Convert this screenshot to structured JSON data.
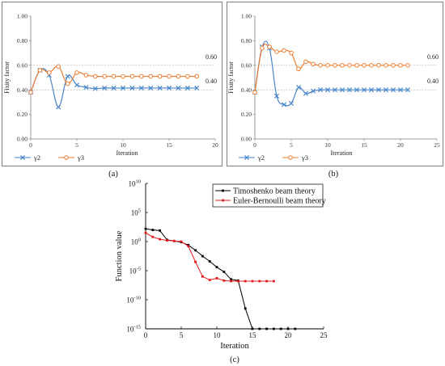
{
  "chart_data": [
    {
      "id": "a",
      "type": "line",
      "caption": "(a)",
      "xlabel": "Iteration",
      "ylabel": "Fixity factor",
      "xlim": [
        0,
        20
      ],
      "ylim": [
        0,
        1
      ],
      "xticks": [
        0,
        5,
        10,
        15,
        20
      ],
      "yticks": [
        0.0,
        0.2,
        0.4,
        0.6,
        0.8,
        1.0
      ],
      "ytick_labels": [
        "0.00",
        "0.20",
        "0.40",
        "0.60",
        "0.80",
        "1.00"
      ],
      "reference_lines": [
        {
          "y": 0.6,
          "label": "0.60"
        },
        {
          "y": 0.4,
          "label": "0.40"
        }
      ],
      "grid": false,
      "legend_position": "bottom-left",
      "series": [
        {
          "name": "γ2",
          "marker": "x",
          "color": "#4a86c8",
          "x": [
            0,
            1,
            2,
            3,
            4,
            5,
            6,
            7,
            8,
            9,
            10,
            11,
            12,
            13,
            14,
            15,
            16,
            17,
            18
          ],
          "y": [
            0.38,
            0.56,
            0.52,
            0.26,
            0.51,
            0.44,
            0.42,
            0.41,
            0.415,
            0.415,
            0.415,
            0.415,
            0.415,
            0.415,
            0.415,
            0.415,
            0.415,
            0.415,
            0.415
          ]
        },
        {
          "name": "γ3",
          "marker": "o",
          "color": "#ed7d31",
          "x": [
            0,
            1,
            2,
            3,
            4,
            5,
            6,
            7,
            8,
            9,
            10,
            11,
            12,
            13,
            14,
            15,
            16,
            17,
            18
          ],
          "y": [
            0.38,
            0.56,
            0.54,
            0.59,
            0.45,
            0.54,
            0.52,
            0.51,
            0.51,
            0.51,
            0.51,
            0.51,
            0.51,
            0.51,
            0.51,
            0.51,
            0.51,
            0.51,
            0.51
          ]
        }
      ]
    },
    {
      "id": "b",
      "type": "line",
      "caption": "(b)",
      "xlabel": "Iteration",
      "ylabel": "Fixity factor",
      "xlim": [
        0,
        25
      ],
      "ylim": [
        0,
        1
      ],
      "xticks": [
        0,
        5,
        10,
        15,
        20,
        25
      ],
      "yticks": [
        0.0,
        0.2,
        0.4,
        0.6,
        0.8,
        1.0
      ],
      "ytick_labels": [
        "0.00",
        "0.20",
        "0.40",
        "0.60",
        "0.80",
        "1.00"
      ],
      "reference_lines": [
        {
          "y": 0.6,
          "label": "0.60"
        },
        {
          "y": 0.4,
          "label": "0.40"
        }
      ],
      "grid": false,
      "legend_position": "bottom-left",
      "series": [
        {
          "name": "γ2",
          "marker": "x",
          "color": "#4a86c8",
          "x": [
            0,
            1,
            2,
            3,
            4,
            5,
            6,
            7,
            8,
            9,
            10,
            11,
            12,
            13,
            14,
            15,
            16,
            17,
            18,
            19,
            20,
            21
          ],
          "y": [
            0.38,
            0.75,
            0.74,
            0.35,
            0.28,
            0.29,
            0.42,
            0.37,
            0.39,
            0.4,
            0.4,
            0.4,
            0.4,
            0.4,
            0.4,
            0.4,
            0.4,
            0.4,
            0.4,
            0.4,
            0.4,
            0.4
          ]
        },
        {
          "name": "γ3",
          "marker": "o",
          "color": "#ed7d31",
          "x": [
            0,
            1,
            2,
            3,
            4,
            5,
            6,
            7,
            8,
            9,
            10,
            11,
            12,
            13,
            14,
            15,
            16,
            17,
            18,
            19,
            20,
            21
          ],
          "y": [
            0.38,
            0.74,
            0.75,
            0.71,
            0.72,
            0.7,
            0.57,
            0.63,
            0.61,
            0.6,
            0.6,
            0.6,
            0.6,
            0.6,
            0.6,
            0.6,
            0.6,
            0.6,
            0.6,
            0.6,
            0.6,
            0.6
          ]
        }
      ]
    },
    {
      "id": "c",
      "type": "line",
      "caption": "(c)",
      "xlabel": "Iteration",
      "ylabel": "Function value",
      "xlim": [
        0,
        25
      ],
      "ylim_log10": [
        -15,
        10
      ],
      "y_scale": "log",
      "xticks": [
        0,
        5,
        10,
        15,
        20,
        25
      ],
      "ytick_exponents": [
        -15,
        -10,
        -5,
        0,
        5,
        10
      ],
      "ytick_base": "10",
      "grid": false,
      "legend_position": "top-right",
      "series": [
        {
          "name": "Timoshenko beam theory",
          "color": "#000000",
          "x": [
            0,
            1,
            2,
            3,
            4,
            5,
            6,
            7,
            8,
            9,
            10,
            11,
            12,
            13,
            14,
            15,
            16,
            17,
            18,
            19,
            20,
            21
          ],
          "log10_y": [
            2.2,
            2.0,
            1.9,
            0.3,
            0.1,
            -0.1,
            -0.6,
            -1.5,
            -2.5,
            -3.4,
            -4.4,
            -5.2,
            -6.5,
            -6.7,
            -11.5,
            -15.8,
            -15.8,
            -16.1,
            -16.1,
            -16.1,
            -16.1,
            -16.1
          ]
        },
        {
          "name": "Euler-Bernoulli beam theory",
          "color": "#e31a1c",
          "x": [
            0,
            1,
            2,
            3,
            4,
            5,
            6,
            7,
            8,
            9,
            10,
            11,
            12,
            13,
            14,
            15,
            16,
            17,
            18
          ],
          "log10_y": [
            1.5,
            0.8,
            0.4,
            0.2,
            0.1,
            0.0,
            -0.8,
            -3.5,
            -6.0,
            -6.6,
            -6.3,
            -6.7,
            -6.8,
            -6.8,
            -6.8,
            -6.8,
            -6.8,
            -6.8,
            -6.8
          ]
        }
      ]
    }
  ]
}
